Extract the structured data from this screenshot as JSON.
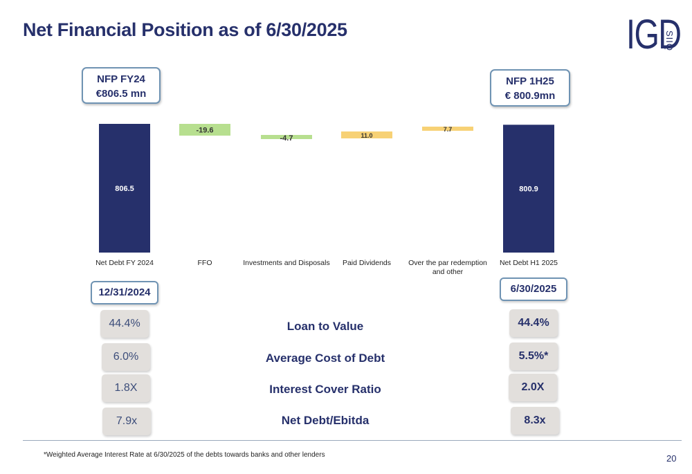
{
  "title": "Net Financial Position as of 6/30/2025",
  "logo": {
    "main": "IGD",
    "sub": "SIIQ"
  },
  "callouts": {
    "left": {
      "line1": "NFP FY24",
      "line2": "€806.5 mn"
    },
    "right": {
      "line1": "NFP 1H25",
      "line2": "€ 800.9mn"
    }
  },
  "chart_data": {
    "type": "bar",
    "subtype": "waterfall",
    "categories": [
      "Net Debt FY 2024",
      "FFO",
      "Investments and Disposals",
      "Paid Dividends",
      "Over the par redemption and other",
      "Net Debt H1 2025"
    ],
    "category_lines": [
      [
        "Net Debt FY 2024"
      ],
      [
        "FFO"
      ],
      [
        "Investments and Disposals"
      ],
      [
        "Paid Dividends"
      ],
      [
        "Over the par redemption",
        "and other"
      ],
      [
        "Net Debt H1 2025"
      ]
    ],
    "values": [
      806.5,
      -19.6,
      -4.7,
      11.0,
      7.7,
      800.9
    ],
    "labels": [
      "806.5",
      "-19.6",
      "-4.7",
      "11.0",
      "7.7",
      "800.9"
    ],
    "colors": {
      "total": "#26306b",
      "decrease": "#b7df8f",
      "increase": "#f7d175"
    },
    "title": "",
    "xlabel": "",
    "ylabel": ""
  },
  "dates": {
    "left": "12/31/2024",
    "right": "6/30/2025"
  },
  "metrics": [
    {
      "label": "Loan to Value",
      "left": "44.4%",
      "right": "44.4%"
    },
    {
      "label": "Average Cost of Debt",
      "left": "6.0%",
      "right": "5.5%*"
    },
    {
      "label": "Interest Cover Ratio",
      "left": "1.8X",
      "right": "2.0X"
    },
    {
      "label": "Net Debt/Ebitda",
      "left": "7.9x",
      "right": "8.3x"
    }
  ],
  "footnote": "*Weighted Average Interest Rate at 6/30/2025 of the debts towards banks and other lenders",
  "page_number": "20"
}
